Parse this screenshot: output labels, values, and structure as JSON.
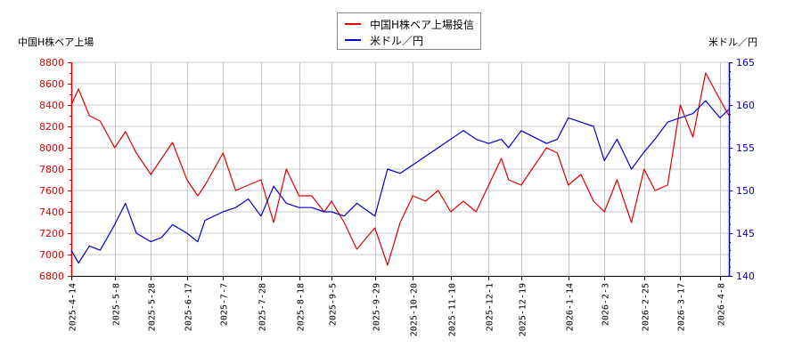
{
  "legend": {
    "items": [
      {
        "label": "中国H株ベア上場投信",
        "color": "#dd0000"
      },
      {
        "label": "米ドル／円",
        "color": "#0000cc"
      }
    ]
  },
  "axes": {
    "left_title": "中国H株ベア上場",
    "right_title": "米ドル／円"
  },
  "chart_data": {
    "type": "line",
    "title": "",
    "xlabel": "",
    "ylabel_left": "中国H株ベア上場",
    "ylabel_right": "米ドル／円",
    "ylim_left": [
      6800,
      8800
    ],
    "ylim_right": [
      140,
      165
    ],
    "yticks_left": [
      6800,
      7000,
      7200,
      7400,
      7600,
      7800,
      8000,
      8200,
      8400,
      8600,
      8800
    ],
    "yticks_right": [
      140,
      145,
      150,
      155,
      160,
      165
    ],
    "xticks": [
      "2025-4-14",
      "2025-5-8",
      "2025-5-28",
      "2025-6-17",
      "2025-7-7",
      "2025-7-28",
      "2025-8-18",
      "2025-9-5",
      "2025-9-29",
      "2025-10-20",
      "2025-11-10",
      "2025-12-1",
      "2025-12-19",
      "2026-1-14",
      "2026-2-3",
      "2026-2-25",
      "2026-3-17",
      "2026-4-8"
    ],
    "grid": true,
    "legend_position": "top-center",
    "colors": {
      "left": "#dd0000",
      "right": "#0000cc",
      "grid": "#c8c8c8"
    },
    "series": [
      {
        "name": "中国H株ベア上場投信",
        "axis": "left",
        "x": [
          "2025-4-14",
          "2025-4-18",
          "2025-4-24",
          "2025-4-30",
          "2025-5-8",
          "2025-5-14",
          "2025-5-20",
          "2025-5-28",
          "2025-6-3",
          "2025-6-9",
          "2025-6-17",
          "2025-6-23",
          "2025-6-27",
          "2025-7-7",
          "2025-7-14",
          "2025-7-21",
          "2025-7-28",
          "2025-8-4",
          "2025-8-11",
          "2025-8-18",
          "2025-8-25",
          "2025-9-1",
          "2025-9-5",
          "2025-9-12",
          "2025-9-19",
          "2025-9-29",
          "2025-10-6",
          "2025-10-13",
          "2025-10-20",
          "2025-10-27",
          "2025-11-3",
          "2025-11-10",
          "2025-11-17",
          "2025-11-24",
          "2025-12-1",
          "2025-12-8",
          "2025-12-12",
          "2025-12-19",
          "2026-1-2",
          "2026-1-8",
          "2026-1-14",
          "2026-1-21",
          "2026-1-28",
          "2026-2-3",
          "2026-2-10",
          "2026-2-18",
          "2026-2-25",
          "2026-3-3",
          "2026-3-10",
          "2026-3-17",
          "2026-3-24",
          "2026-3-31",
          "2026-4-8",
          "2026-4-13"
        ],
        "values": [
          8400,
          8550,
          8300,
          8250,
          8000,
          8150,
          7950,
          7750,
          7900,
          8050,
          7700,
          7550,
          7650,
          7950,
          7600,
          7650,
          7700,
          7300,
          7800,
          7550,
          7550,
          7400,
          7500,
          7300,
          7050,
          7250,
          6900,
          7300,
          7550,
          7500,
          7600,
          7400,
          7500,
          7400,
          7650,
          7900,
          7700,
          7650,
          8000,
          7950,
          7650,
          7750,
          7500,
          7400,
          7700,
          7300,
          7800,
          7600,
          7650,
          8400,
          8100,
          8700,
          8450,
          8300
        ]
      },
      {
        "name": "米ドル／円",
        "axis": "right",
        "x": [
          "2025-4-14",
          "2025-4-18",
          "2025-4-24",
          "2025-4-30",
          "2025-5-8",
          "2025-5-14",
          "2025-5-20",
          "2025-5-28",
          "2025-6-3",
          "2025-6-9",
          "2025-6-17",
          "2025-6-23",
          "2025-6-27",
          "2025-7-7",
          "2025-7-14",
          "2025-7-21",
          "2025-7-28",
          "2025-8-4",
          "2025-8-11",
          "2025-8-18",
          "2025-8-25",
          "2025-9-1",
          "2025-9-5",
          "2025-9-12",
          "2025-9-19",
          "2025-9-29",
          "2025-10-6",
          "2025-10-13",
          "2025-10-20",
          "2025-10-27",
          "2025-11-3",
          "2025-11-10",
          "2025-11-17",
          "2025-11-24",
          "2025-12-1",
          "2025-12-8",
          "2025-12-12",
          "2025-12-19",
          "2026-1-2",
          "2026-1-8",
          "2026-1-14",
          "2026-1-21",
          "2026-1-28",
          "2026-2-3",
          "2026-2-10",
          "2026-2-18",
          "2026-2-25",
          "2026-3-3",
          "2026-3-10",
          "2026-3-17",
          "2026-3-24",
          "2026-3-31",
          "2026-4-8",
          "2026-4-13"
        ],
        "values": [
          143,
          141.5,
          143.5,
          143,
          146,
          148.5,
          145,
          144,
          144.5,
          146,
          145,
          144,
          146.5,
          147.5,
          148,
          149,
          147,
          150.5,
          148.5,
          148,
          148,
          147.5,
          147.5,
          147,
          148.5,
          147,
          152.5,
          152,
          153,
          154,
          155,
          156,
          157,
          156,
          155.5,
          156,
          155,
          157,
          155.5,
          156,
          158.5,
          158,
          157.5,
          153.5,
          156,
          152.5,
          154.5,
          156,
          158,
          158.5,
          159,
          160.5,
          158.5,
          159.5
        ]
      }
    ]
  }
}
